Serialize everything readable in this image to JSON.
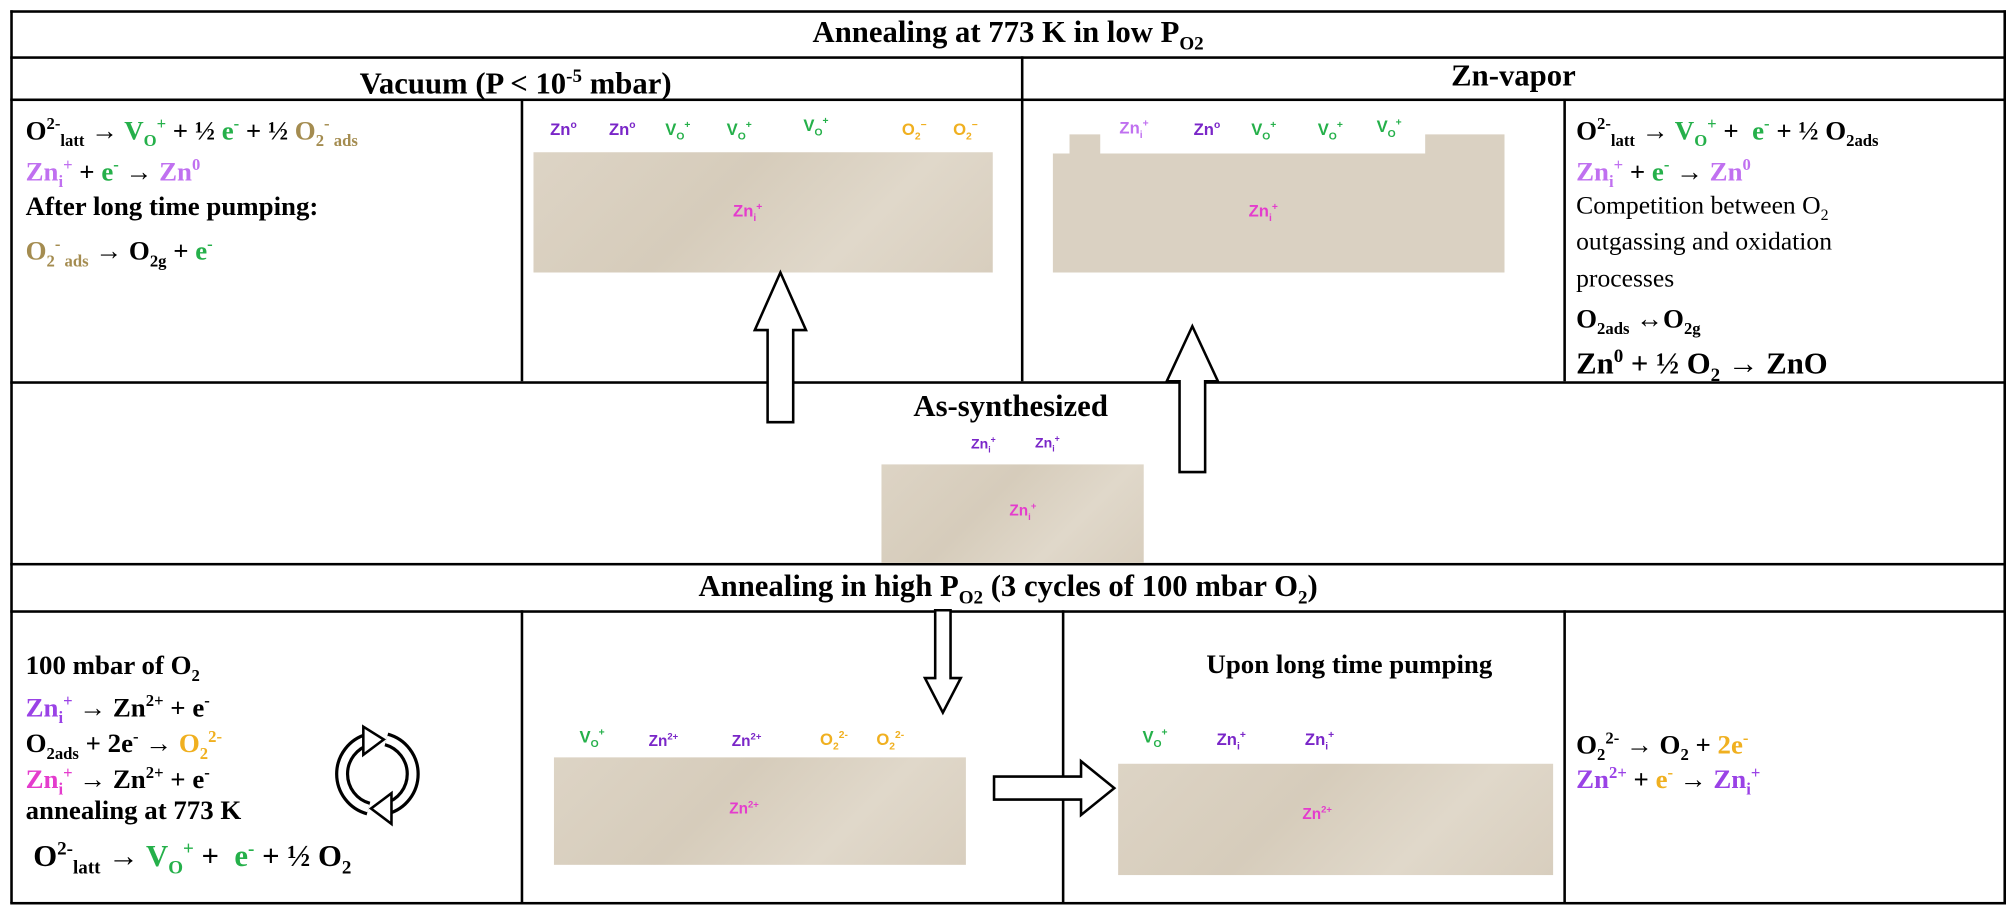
{
  "header": {
    "title": [
      "Annealing at 773 K in low P",
      "O2"
    ]
  },
  "vacuum": {
    "title": [
      "Vacuum (P < 10",
      "-5",
      " mbar)"
    ],
    "equations": [
      [
        "O",
        "2-",
        "latt",
        " → ",
        "V",
        "O",
        "+",
        " + ½ ",
        "e",
        "-",
        " + ½ ",
        "O",
        "2",
        "-",
        " ads"
      ],
      [
        "Zn",
        "i",
        "+",
        " + ",
        "e",
        "-",
        " → ",
        "Zn",
        "0"
      ],
      [
        "After long time pumping:"
      ],
      [
        "O",
        "2",
        "-",
        " ads",
        " → O",
        "2g",
        " + ",
        "e",
        "-"
      ]
    ],
    "surface": [
      [
        "Zn",
        "o"
      ],
      [
        "Zn",
        "o"
      ],
      [
        "V",
        "O",
        "+"
      ],
      [
        "V",
        "O",
        "+"
      ],
      [
        "V",
        "O",
        "+"
      ],
      [
        "O",
        "2",
        "−"
      ],
      [
        "O",
        "2",
        "−"
      ]
    ],
    "bulk": [
      "Zn",
      "i",
      "+"
    ]
  },
  "zn_vapor": {
    "title": "Zn-vapor",
    "surface": [
      [
        "Zn",
        "i",
        "+"
      ],
      [
        "Zn",
        "o"
      ],
      [
        "V",
        "O",
        "+"
      ],
      [
        "V",
        "O",
        "+"
      ],
      [
        "V",
        "O",
        "+"
      ]
    ],
    "bulk": [
      "Zn",
      "i",
      "+"
    ],
    "equations": [
      [
        "O",
        "2-",
        "latt",
        " → ",
        "V",
        "O",
        "+",
        " +  ",
        "e",
        "-",
        " + ½ O",
        "2ads"
      ],
      [
        "Zn",
        "i",
        "+",
        " + ",
        "e",
        "-",
        " → ",
        "Zn",
        "0"
      ],
      [
        "Competition between O",
        "2"
      ],
      [
        "outgassing and oxidation"
      ],
      [
        "processes"
      ],
      [
        "O",
        "2ads",
        " ↔O",
        "2g"
      ],
      [
        "Zn",
        "0",
        " + ½ O",
        "2",
        " → ZnO"
      ]
    ]
  },
  "as_synthesized": {
    "title": "As-synthesized",
    "surface": [
      [
        "Zn",
        "i",
        "+"
      ],
      [
        "Zn",
        "i",
        "+"
      ]
    ],
    "bulk": [
      "Zn",
      "i",
      "+"
    ]
  },
  "high_po2": {
    "title": [
      "Annealing in high P",
      "O2",
      " (3 cycles of 100 mbar O",
      "2",
      ")"
    ],
    "equations": [
      [
        "100 mbar of O",
        "2"
      ],
      [
        "Zn",
        "i",
        "+",
        " → Zn",
        "2+",
        " + e",
        "-"
      ],
      [
        "O",
        "2ads",
        " + 2e",
        "-",
        " → ",
        "O",
        "2",
        "2-"
      ],
      [
        "Zn",
        "i",
        "+",
        " → Zn",
        "2+",
        " + e",
        "-"
      ],
      [
        "annealing at 773 K"
      ],
      [
        " O",
        "2-",
        "latt",
        " → ",
        "V",
        "O",
        "+",
        " +  ",
        "e",
        "-",
        " + ½ O",
        "2"
      ]
    ],
    "surface": [
      [
        "V",
        "O",
        "+"
      ],
      [
        "Zn",
        "2+"
      ],
      [
        "Zn",
        "2+"
      ],
      [
        "O",
        "2",
        "2-"
      ],
      [
        "O",
        "2",
        "2-"
      ]
    ],
    "bulk": [
      "Zn",
      "2+"
    ],
    "pumping": {
      "title": "Upon long time pumping",
      "surface": [
        [
          "V",
          "O",
          "+"
        ],
        [
          "Zn",
          "i",
          "+"
        ],
        [
          "Zn",
          "i",
          "+"
        ]
      ],
      "bulk": [
        "Zn",
        "2+"
      ]
    },
    "result_equations": [
      [
        "O",
        "2",
        "2-",
        " → O",
        "2",
        " + ",
        "2e",
        "-"
      ],
      [
        "Zn",
        "2+",
        " + ",
        "e",
        "-",
        " → ",
        "Zn",
        "i",
        "+"
      ]
    ]
  }
}
